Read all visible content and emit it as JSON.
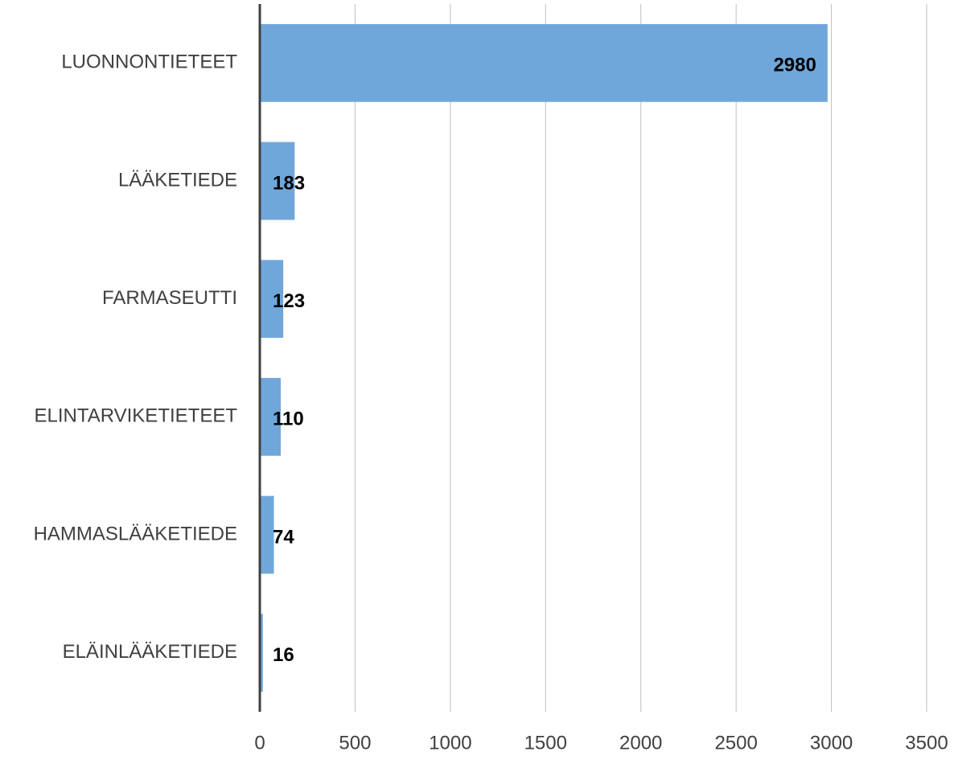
{
  "chart_data": {
    "type": "bar",
    "orientation": "horizontal",
    "categories": [
      "LUONNONTIETEET",
      "LÄÄKETIEDE",
      "FARMASEUTTI",
      "ELINTARVIKETIETEET",
      "HAMMASLÄÄKETIEDE",
      "ELÄINLÄÄKETIEDE"
    ],
    "values": [
      2980,
      183,
      123,
      110,
      74,
      16
    ],
    "color": "#70a7db",
    "xlim": [
      0,
      3500
    ],
    "xticks": [
      0,
      500,
      1000,
      1500,
      2000,
      2500,
      3000,
      3500
    ],
    "grid": true
  }
}
